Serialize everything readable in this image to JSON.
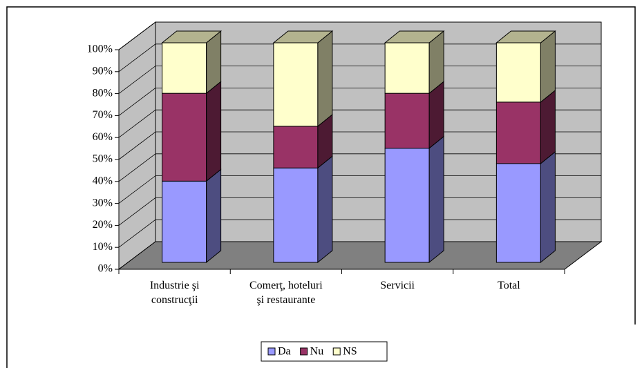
{
  "chart_data": {
    "type": "bar3d_stacked",
    "categories": [
      "Industrie şi\nconstrucţii",
      "Comerţ, hoteluri\nşi restaurante",
      "Servicii",
      "Total"
    ],
    "series": [
      {
        "name": "Da",
        "color": "#9999ff",
        "values": [
          37,
          43,
          52,
          45
        ]
      },
      {
        "name": "Nu",
        "color": "#993366",
        "values": [
          40,
          19,
          25,
          28
        ]
      },
      {
        "name": "NS",
        "color": "#ffffcc",
        "values": [
          23,
          38,
          23,
          27
        ]
      }
    ],
    "ylim": [
      0,
      100
    ],
    "yticks": [
      {
        "value": 0,
        "label": "0%"
      },
      {
        "value": 10,
        "label": "10%"
      },
      {
        "value": 20,
        "label": "20%"
      },
      {
        "value": 30,
        "label": "30%"
      },
      {
        "value": 40,
        "label": "40%"
      },
      {
        "value": 50,
        "label": "50%"
      },
      {
        "value": 60,
        "label": "60%"
      },
      {
        "value": 70,
        "label": "70%"
      },
      {
        "value": 80,
        "label": "80%"
      },
      {
        "value": 90,
        "label": "90%"
      },
      {
        "value": 100,
        "label": "100%"
      }
    ],
    "grid": true,
    "legend": "bottom"
  }
}
